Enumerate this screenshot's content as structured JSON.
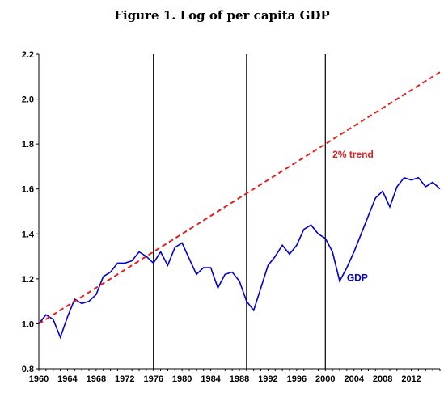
{
  "chart_data": {
    "type": "line",
    "title": "Figure 1. Log of per capita GDP",
    "xlabel": "",
    "ylabel": "",
    "xlim": [
      1960,
      2016
    ],
    "ylim": [
      0.8,
      2.2
    ],
    "x_ticks": [
      1960,
      1964,
      1968,
      1972,
      1976,
      1980,
      1984,
      1988,
      1992,
      1996,
      2000,
      2004,
      2008,
      2012
    ],
    "x_tick_labels": [
      "1960",
      "1964",
      "1968",
      "1972",
      "1976",
      "1980",
      "1984",
      "1988",
      "1992",
      "1996",
      "2000",
      "2004",
      "2008",
      "2012"
    ],
    "y_ticks": [
      0.8,
      1.0,
      1.2,
      1.4,
      1.6,
      1.8,
      2.0,
      2.2
    ],
    "y_tick_labels": [
      "0.8",
      "1.0",
      "1.2",
      "1.4",
      "1.6",
      "1.8",
      "2.0",
      "2.2"
    ],
    "grid": false,
    "vertical_lines": [
      1976,
      1989,
      2000
    ],
    "series": [
      {
        "name": "GDP",
        "color": "#0000cc",
        "style": "solid",
        "x": [
          1960,
          1961,
          1962,
          1963,
          1964,
          1965,
          1966,
          1967,
          1968,
          1969,
          1970,
          1971,
          1972,
          1973,
          1974,
          1975,
          1976,
          1977,
          1978,
          1979,
          1980,
          1981,
          1982,
          1983,
          1984,
          1985,
          1986,
          1987,
          1988,
          1989,
          1990,
          1991,
          1992,
          1993,
          1994,
          1995,
          1996,
          1997,
          1998,
          1999,
          2000,
          2001,
          2002,
          2003,
          2004,
          2005,
          2006,
          2007,
          2008,
          2009,
          2010,
          2011,
          2012,
          2013,
          2014,
          2015,
          2016
        ],
        "values": [
          1.0,
          1.04,
          1.02,
          0.94,
          1.03,
          1.11,
          1.09,
          1.1,
          1.13,
          1.21,
          1.23,
          1.27,
          1.27,
          1.28,
          1.32,
          1.3,
          1.27,
          1.32,
          1.26,
          1.34,
          1.36,
          1.29,
          1.22,
          1.25,
          1.25,
          1.16,
          1.22,
          1.23,
          1.19,
          1.1,
          1.06,
          1.16,
          1.26,
          1.3,
          1.35,
          1.31,
          1.35,
          1.42,
          1.44,
          1.4,
          1.38,
          1.32,
          1.19,
          1.25,
          1.32,
          1.4,
          1.48,
          1.56,
          1.59,
          1.52,
          1.61,
          1.65,
          1.64,
          1.65,
          1.61,
          1.63,
          1.6
        ]
      },
      {
        "name": "2% trend",
        "color": "#e02020",
        "style": "dashed",
        "x": [
          1960,
          2016
        ],
        "values": [
          1.0,
          2.12
        ]
      }
    ],
    "annotations": [
      {
        "text": "2% trend",
        "x": 2001,
        "y": 1.74,
        "color": "#e02020"
      },
      {
        "text": "GDP",
        "x": 2003,
        "y": 1.19,
        "color": "#0000cc"
      }
    ]
  }
}
